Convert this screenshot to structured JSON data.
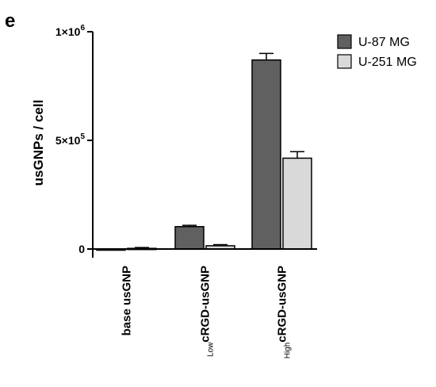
{
  "panel_letter": "e",
  "colors": {
    "U-87 MG": "#606060",
    "U-251 MG": "#d9d9d9",
    "axis": "#000000"
  },
  "chart_data": {
    "type": "bar",
    "title": "",
    "xlabel": "",
    "ylabel": "usGNPs / cell",
    "ylim": [
      -10000,
      1000000
    ],
    "grid": false,
    "legend_position": "top-right",
    "yticks": [
      {
        "value": 0,
        "mantissa": "0",
        "exponent": ""
      },
      {
        "value": 500000,
        "mantissa": "5×10",
        "exponent": "5"
      },
      {
        "value": 1000000,
        "mantissa": "1×10",
        "exponent": "6"
      }
    ],
    "categories": [
      {
        "prefix": "",
        "main": "base usGNP"
      },
      {
        "prefix": "Low",
        "main": "cRGD-usGNP"
      },
      {
        "prefix": "High",
        "main": "cRGD-usGNP"
      }
    ],
    "series": [
      {
        "name": "U-87 MG",
        "values": [
          -4000,
          103000,
          870000
        ],
        "errors": [
          2000,
          6000,
          30000
        ]
      },
      {
        "name": "U-251 MG",
        "values": [
          3000,
          15000,
          418000
        ],
        "errors": [
          4000,
          5000,
          30000
        ]
      }
    ]
  }
}
